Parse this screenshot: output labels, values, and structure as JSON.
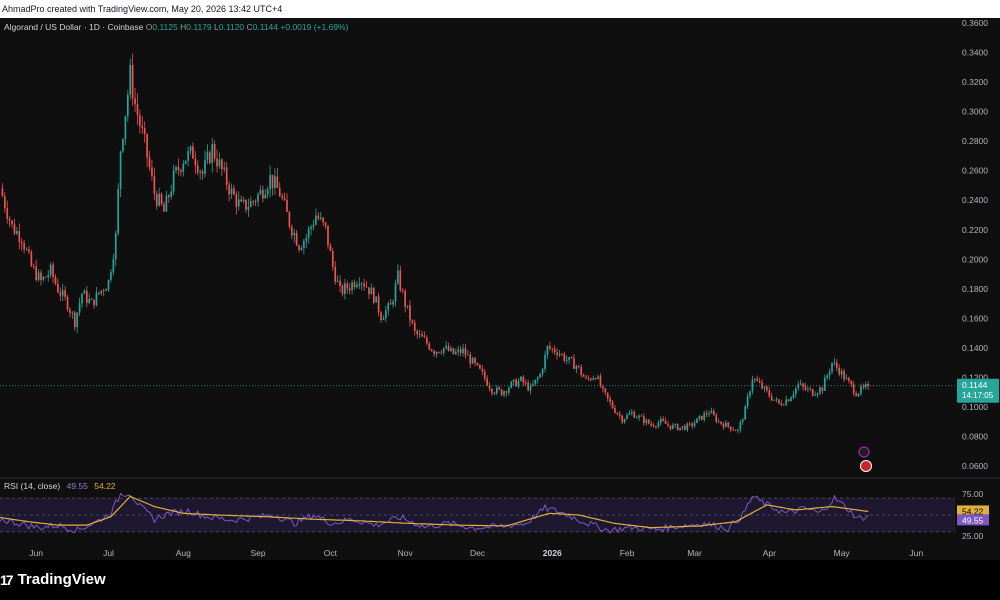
{
  "header": {
    "created_text": "AhmadPro created with TradingView.com, May 20, 2026 13:42 UTC+4"
  },
  "legend": {
    "symbol": "Algorand / US Dollar · 1D · Coinbase",
    "o_label": "O",
    "o_value": "0.1125",
    "h_label": "H",
    "h_value": "0.1179",
    "l_label": "L",
    "l_value": "0.1120",
    "c_label": "C",
    "c_value": "0.1144",
    "change": "+0.0019 (+1.69%)"
  },
  "rsi_legend": {
    "name": "RSI (14, close)",
    "rsi_value": "49.55",
    "ma_value": "54.22"
  },
  "price_badge": {
    "price": "0.1144",
    "countdown": "14:17:05"
  },
  "footer": {
    "brand": "TradingView",
    "logo_glyph": "17"
  },
  "colors": {
    "up": "#26a69a",
    "down": "#ef5350",
    "rsi_line": "#7e57c2",
    "rsi_ma": "#e0b13a",
    "rsi_band": "#2a1f4a"
  },
  "chart_data": [
    {
      "type": "candlestick",
      "title": "Algorand / US Dollar · 1D · Coinbase",
      "y_ticks": [
        "0.3600",
        "0.3400",
        "0.3200",
        "0.3000",
        "0.2800",
        "0.2600",
        "0.2400",
        "0.2200",
        "0.2000",
        "0.1800",
        "0.1600",
        "0.1400",
        "0.1200",
        "0.1000",
        "0.0800",
        "0.0600"
      ],
      "ylim": [
        0.054,
        0.362
      ],
      "x_ticks": [
        "Jun",
        "Jul",
        "Aug",
        "Sep",
        "Oct",
        "Nov",
        "Dec",
        "2026",
        "Feb",
        "Mar",
        "Apr",
        "May",
        "Jun"
      ],
      "x_tick_day": [
        15,
        45,
        76,
        107,
        137,
        168,
        198,
        229,
        260,
        288,
        319,
        349,
        380
      ],
      "x_range_days": [
        0,
        396
      ],
      "close_path": [
        {
          "day": 0,
          "close": 0.248
        },
        {
          "day": 5,
          "close": 0.222
        },
        {
          "day": 9,
          "close": 0.215
        },
        {
          "day": 13,
          "close": 0.195
        },
        {
          "day": 17,
          "close": 0.185
        },
        {
          "day": 21,
          "close": 0.192
        },
        {
          "day": 24,
          "close": 0.18
        },
        {
          "day": 28,
          "close": 0.17
        },
        {
          "day": 31,
          "close": 0.158
        },
        {
          "day": 34,
          "close": 0.177
        },
        {
          "day": 38,
          "close": 0.17
        },
        {
          "day": 41,
          "close": 0.177
        },
        {
          "day": 45,
          "close": 0.185
        },
        {
          "day": 48,
          "close": 0.215
        },
        {
          "day": 50,
          "close": 0.275
        },
        {
          "day": 54,
          "close": 0.325
        },
        {
          "day": 56,
          "close": 0.305
        },
        {
          "day": 60,
          "close": 0.278
        },
        {
          "day": 64,
          "close": 0.245
        },
        {
          "day": 68,
          "close": 0.232
        },
        {
          "day": 72,
          "close": 0.255
        },
        {
          "day": 76,
          "close": 0.268
        },
        {
          "day": 80,
          "close": 0.272
        },
        {
          "day": 84,
          "close": 0.258
        },
        {
          "day": 88,
          "close": 0.275
        },
        {
          "day": 92,
          "close": 0.26
        },
        {
          "day": 96,
          "close": 0.245
        },
        {
          "day": 100,
          "close": 0.235
        },
        {
          "day": 104,
          "close": 0.238
        },
        {
          "day": 108,
          "close": 0.245
        },
        {
          "day": 112,
          "close": 0.255
        },
        {
          "day": 116,
          "close": 0.245
        },
        {
          "day": 120,
          "close": 0.225
        },
        {
          "day": 124,
          "close": 0.21
        },
        {
          "day": 127,
          "close": 0.215
        },
        {
          "day": 131,
          "close": 0.23
        },
        {
          "day": 135,
          "close": 0.22
        },
        {
          "day": 138,
          "close": 0.195
        },
        {
          "day": 141,
          "close": 0.178
        },
        {
          "day": 145,
          "close": 0.182
        },
        {
          "day": 149,
          "close": 0.188
        },
        {
          "day": 152,
          "close": 0.182
        },
        {
          "day": 155,
          "close": 0.175
        },
        {
          "day": 158,
          "close": 0.162
        },
        {
          "day": 162,
          "close": 0.168
        },
        {
          "day": 165,
          "close": 0.188
        },
        {
          "day": 168,
          "close": 0.17
        },
        {
          "day": 172,
          "close": 0.15
        },
        {
          "day": 176,
          "close": 0.145
        },
        {
          "day": 180,
          "close": 0.138
        },
        {
          "day": 184,
          "close": 0.14
        },
        {
          "day": 188,
          "close": 0.136
        },
        {
          "day": 192,
          "close": 0.138
        },
        {
          "day": 196,
          "close": 0.13
        },
        {
          "day": 200,
          "close": 0.122
        },
        {
          "day": 204,
          "close": 0.112
        },
        {
          "day": 208,
          "close": 0.11
        },
        {
          "day": 212,
          "close": 0.115
        },
        {
          "day": 216,
          "close": 0.118
        },
        {
          "day": 220,
          "close": 0.112
        },
        {
          "day": 224,
          "close": 0.122
        },
        {
          "day": 227,
          "close": 0.14
        },
        {
          "day": 231,
          "close": 0.138
        },
        {
          "day": 235,
          "close": 0.132
        },
        {
          "day": 239,
          "close": 0.128
        },
        {
          "day": 243,
          "close": 0.118
        },
        {
          "day": 247,
          "close": 0.122
        },
        {
          "day": 250,
          "close": 0.11
        },
        {
          "day": 254,
          "close": 0.1
        },
        {
          "day": 258,
          "close": 0.092
        },
        {
          "day": 262,
          "close": 0.096
        },
        {
          "day": 266,
          "close": 0.092
        },
        {
          "day": 270,
          "close": 0.088
        },
        {
          "day": 274,
          "close": 0.09
        },
        {
          "day": 278,
          "close": 0.087
        },
        {
          "day": 282,
          "close": 0.086
        },
        {
          "day": 286,
          "close": 0.087
        },
        {
          "day": 290,
          "close": 0.092
        },
        {
          "day": 294,
          "close": 0.097
        },
        {
          "day": 298,
          "close": 0.09
        },
        {
          "day": 302,
          "close": 0.087
        },
        {
          "day": 306,
          "close": 0.084
        },
        {
          "day": 309,
          "close": 0.098
        },
        {
          "day": 312,
          "close": 0.12
        },
        {
          "day": 315,
          "close": 0.115
        },
        {
          "day": 319,
          "close": 0.108
        },
        {
          "day": 323,
          "close": 0.102
        },
        {
          "day": 327,
          "close": 0.106
        },
        {
          "day": 331,
          "close": 0.115
        },
        {
          "day": 334,
          "close": 0.112
        },
        {
          "day": 337,
          "close": 0.11
        },
        {
          "day": 341,
          "close": 0.113
        },
        {
          "day": 345,
          "close": 0.13
        },
        {
          "day": 348,
          "close": 0.125
        },
        {
          "day": 351,
          "close": 0.118
        },
        {
          "day": 355,
          "close": 0.11
        },
        {
          "day": 358,
          "close": 0.112
        },
        {
          "day": 360,
          "close": 0.1144
        }
      ],
      "last_price": 0.1144
    },
    {
      "type": "line",
      "title": "RSI (14, close)",
      "y_ticks": [
        "75.00",
        "25.00"
      ],
      "ylim": [
        18,
        82
      ],
      "levels": [
        70,
        50,
        30
      ],
      "series": [
        {
          "values": [
            {
              "day": 0,
              "v": 45
            },
            {
              "day": 8,
              "v": 40
            },
            {
              "day": 16,
              "v": 35
            },
            {
              "day": 24,
              "v": 38
            },
            {
              "day": 32,
              "v": 32
            },
            {
              "day": 40,
              "v": 42
            },
            {
              "day": 46,
              "v": 52
            },
            {
              "day": 50,
              "v": 75
            },
            {
              "day": 54,
              "v": 76
            },
            {
              "day": 58,
              "v": 60
            },
            {
              "day": 64,
              "v": 45
            },
            {
              "day": 70,
              "v": 52
            },
            {
              "day": 78,
              "v": 55
            },
            {
              "day": 86,
              "v": 48
            },
            {
              "day": 96,
              "v": 44
            },
            {
              "day": 106,
              "v": 47
            },
            {
              "day": 114,
              "v": 50
            },
            {
              "day": 122,
              "v": 40
            },
            {
              "day": 130,
              "v": 50
            },
            {
              "day": 138,
              "v": 40
            },
            {
              "day": 146,
              "v": 45
            },
            {
              "day": 156,
              "v": 38
            },
            {
              "day": 166,
              "v": 47
            },
            {
              "day": 176,
              "v": 36
            },
            {
              "day": 186,
              "v": 40
            },
            {
              "day": 196,
              "v": 35
            },
            {
              "day": 206,
              "v": 36
            },
            {
              "day": 218,
              "v": 40
            },
            {
              "day": 226,
              "v": 58
            },
            {
              "day": 232,
              "v": 54
            },
            {
              "day": 242,
              "v": 42
            },
            {
              "day": 252,
              "v": 32
            },
            {
              "day": 262,
              "v": 35
            },
            {
              "day": 272,
              "v": 33
            },
            {
              "day": 282,
              "v": 37
            },
            {
              "day": 292,
              "v": 40
            },
            {
              "day": 302,
              "v": 34
            },
            {
              "day": 308,
              "v": 50
            },
            {
              "day": 312,
              "v": 72
            },
            {
              "day": 318,
              "v": 62
            },
            {
              "day": 326,
              "v": 52
            },
            {
              "day": 334,
              "v": 58
            },
            {
              "day": 340,
              "v": 52
            },
            {
              "day": 346,
              "v": 70
            },
            {
              "day": 352,
              "v": 56
            },
            {
              "day": 356,
              "v": 45
            },
            {
              "day": 360,
              "v": 49.55
            }
          ]
        },
        {
          "values": [
            {
              "day": 0,
              "v": 47
            },
            {
              "day": 12,
              "v": 42
            },
            {
              "day": 24,
              "v": 38
            },
            {
              "day": 36,
              "v": 38
            },
            {
              "day": 46,
              "v": 48
            },
            {
              "day": 54,
              "v": 72
            },
            {
              "day": 64,
              "v": 60
            },
            {
              "day": 76,
              "v": 52
            },
            {
              "day": 90,
              "v": 50
            },
            {
              "day": 110,
              "v": 48
            },
            {
              "day": 130,
              "v": 45
            },
            {
              "day": 150,
              "v": 43
            },
            {
              "day": 170,
              "v": 40
            },
            {
              "day": 190,
              "v": 38
            },
            {
              "day": 210,
              "v": 37
            },
            {
              "day": 228,
              "v": 52
            },
            {
              "day": 240,
              "v": 50
            },
            {
              "day": 255,
              "v": 40
            },
            {
              "day": 270,
              "v": 35
            },
            {
              "day": 290,
              "v": 37
            },
            {
              "day": 305,
              "v": 42
            },
            {
              "day": 318,
              "v": 62
            },
            {
              "day": 330,
              "v": 56
            },
            {
              "day": 345,
              "v": 60
            },
            {
              "day": 360,
              "v": 54.22
            }
          ]
        }
      ]
    }
  ]
}
